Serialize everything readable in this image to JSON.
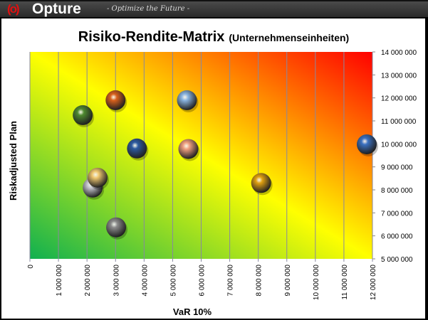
{
  "header": {
    "logo_mark": "(o)",
    "brand": "Opture",
    "tagline": "- Optimize the Future -"
  },
  "chart_data": {
    "type": "scatter",
    "title": "Risiko-Rendite-Matrix",
    "subtitle": "(Unternehmenseinheiten)",
    "xlabel": "VaR 10%",
    "ylabel": "Riskadjusted Plan",
    "xlim": [
      0,
      12000000
    ],
    "ylim": [
      5000000,
      14000000
    ],
    "x_ticks": [
      "0",
      "1 000 000",
      "2 000 000",
      "3 000 000",
      "4 000 000",
      "5 000 000",
      "6 000 000",
      "7 000 000",
      "8 000 000",
      "9 000 000",
      "10 000 000",
      "11 000 000",
      "12 000 000"
    ],
    "y_ticks": [
      "5 000 000",
      "6 000 000",
      "7 000 000",
      "8 000 000",
      "9 000 000",
      "10 000 000",
      "11 000 000",
      "12 000 000",
      "13 000 000",
      "14 000 000"
    ],
    "grid": "vertical",
    "points": [
      {
        "x": 2200000,
        "y": 8100000,
        "color": "#c8c8d0"
      },
      {
        "x": 3000000,
        "y": 11900000,
        "color": "#d8601c"
      },
      {
        "x": 5500000,
        "y": 11900000,
        "color": "#8ab4e0"
      },
      {
        "x": 1850000,
        "y": 11250000,
        "color": "#4e8a30"
      },
      {
        "x": 3750000,
        "y": 9800000,
        "color": "#2c5aa0"
      },
      {
        "x": 5550000,
        "y": 9780000,
        "color": "#f0a080"
      },
      {
        "x": 11800000,
        "y": 9980000,
        "color": "#3a70c0"
      },
      {
        "x": 2370000,
        "y": 8530000,
        "color": "#f0c870"
      },
      {
        "x": 8100000,
        "y": 8300000,
        "color": "#e0a010"
      },
      {
        "x": 3020000,
        "y": 6370000,
        "color": "#8a8a8a"
      }
    ]
  }
}
